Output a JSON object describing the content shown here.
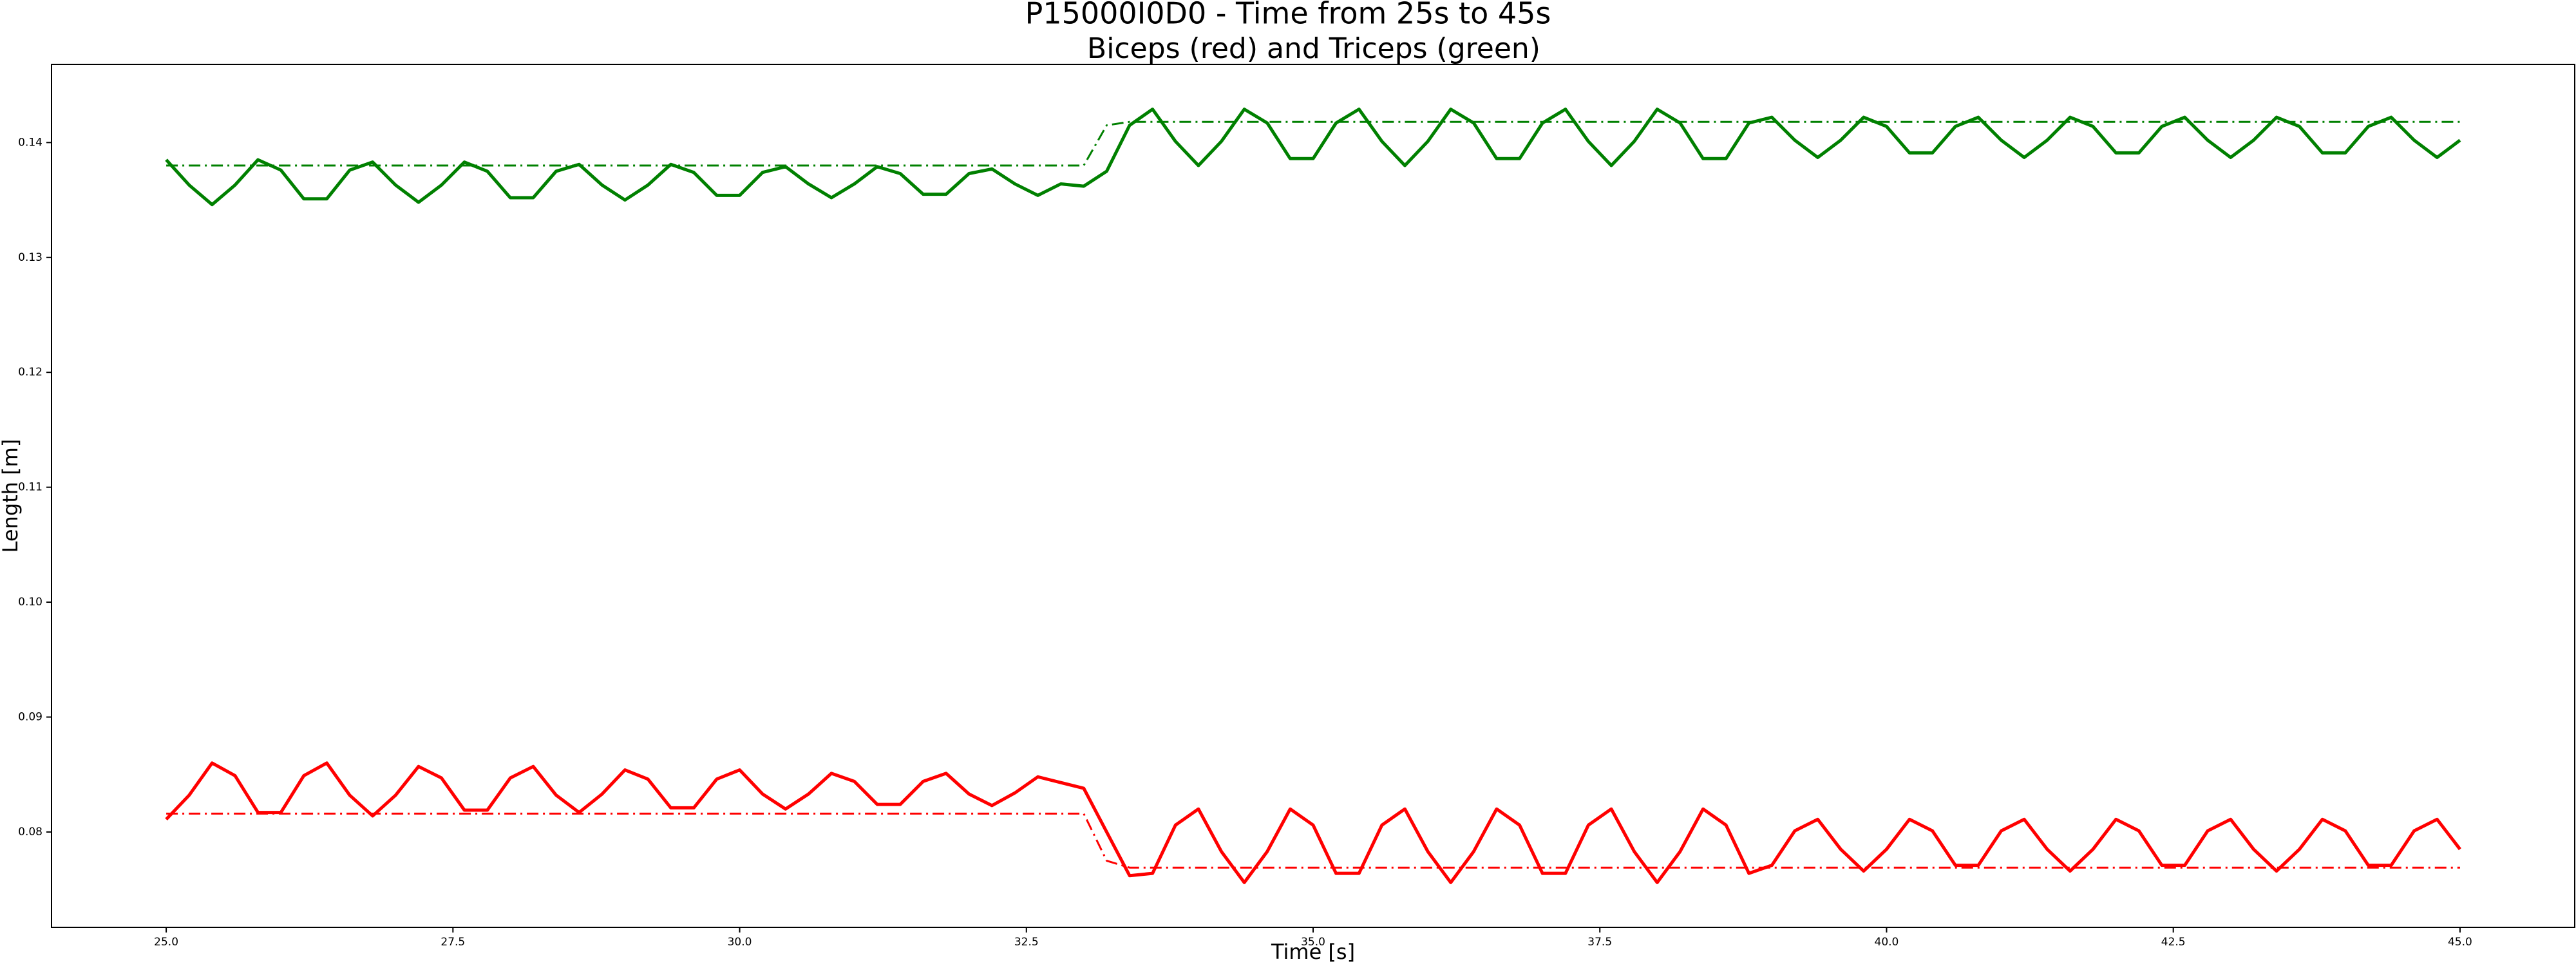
{
  "chart_data": {
    "type": "line",
    "title": "P15000I0D0 - Time from 25s to 45s",
    "subtitle": "Biceps (red) and Triceps (green)",
    "x_label": "Time [s]",
    "y_label": "Length [m]",
    "grid": false,
    "xlim": [
      24.0,
      46.0
    ],
    "ylim": [
      0.0717,
      0.1468
    ],
    "xticks": [
      {
        "value": 25,
        "label": "25.0"
      },
      27.5,
      {
        "value": 30,
        "label": "30.0"
      },
      32.5,
      {
        "value": 35,
        "label": "35.0"
      },
      37.5,
      {
        "value": 40,
        "label": "40.0"
      },
      42.5,
      {
        "value": 45,
        "label": "45.0"
      }
    ],
    "yticks": [
      0.08,
      0.09,
      {
        "value": 0.1,
        "label": "0.10"
      },
      0.11,
      0.12,
      0.13,
      0.14
    ],
    "x": [
      25,
      25.2,
      25.4,
      25.6,
      25.8,
      26,
      26.2,
      26.4,
      26.6,
      26.8,
      27,
      27.2,
      27.4,
      27.6,
      27.8,
      28,
      28.2,
      28.4,
      28.6,
      28.8,
      29,
      29.2,
      29.4,
      29.6,
      29.8,
      30,
      30.2,
      30.4,
      30.6,
      30.8,
      31,
      31.2,
      31.4,
      31.6,
      31.8,
      32,
      32.2,
      32.4,
      32.6,
      32.8,
      33,
      33.2,
      33.4,
      33.6,
      33.8,
      34,
      34.2,
      34.4,
      34.6,
      34.8,
      35,
      35.2,
      35.4,
      35.6,
      35.8,
      36,
      36.2,
      36.4,
      36.6,
      36.8,
      37,
      37.2,
      37.4,
      37.6,
      37.8,
      38,
      38.2,
      38.4,
      38.6,
      38.8,
      39,
      39.2,
      39.4,
      39.6,
      39.8,
      40,
      40.2,
      40.4,
      40.6,
      40.8,
      41,
      41.2,
      41.4,
      41.6,
      41.8,
      42,
      42.2,
      42.4,
      42.6,
      42.8,
      43,
      43.2,
      43.4,
      43.6,
      43.8,
      44,
      44.2,
      44.4,
      44.6,
      44.8,
      45
    ],
    "series": [
      {
        "color": "#008000",
        "linestyle": "solid",
        "values": [
          0.1385,
          0.1363,
          0.1346,
          0.1363,
          0.1385,
          0.1376,
          0.1351,
          0.1351,
          0.1376,
          0.1383,
          0.1363,
          0.1348,
          0.1363,
          0.1383,
          0.1375,
          0.1352,
          0.1352,
          0.1375,
          0.1381,
          0.1363,
          0.135,
          0.1363,
          0.1381,
          0.1374,
          0.1354,
          0.1354,
          0.1374,
          0.1379,
          0.1364,
          0.1352,
          0.1364,
          0.1379,
          0.1373,
          0.1355,
          0.1355,
          0.1373,
          0.1377,
          0.1364,
          0.1354,
          0.1364,
          0.1362,
          0.1375,
          0.1415,
          0.1429,
          0.1401,
          0.138,
          0.1401,
          0.1429,
          0.1417,
          0.1386,
          0.1386,
          0.1417,
          0.1429,
          0.1401,
          0.138,
          0.1401,
          0.1429,
          0.1417,
          0.1386,
          0.1386,
          0.1417,
          0.1429,
          0.1401,
          0.138,
          0.1401,
          0.1429,
          0.1417,
          0.1386,
          0.1386,
          0.1417,
          0.1422,
          0.1402,
          0.1387,
          0.1402,
          0.1422,
          0.1414,
          0.1391,
          0.1391,
          0.1414,
          0.1422,
          0.1402,
          0.1387,
          0.1402,
          0.1422,
          0.1414,
          0.1391,
          0.1391,
          0.1414,
          0.1422,
          0.1402,
          0.1387,
          0.1402,
          0.1422,
          0.1414,
          0.1391,
          0.1391,
          0.1414,
          0.1422,
          0.1402,
          0.1387,
          0.1402
        ]
      },
      {
        "color": "#008000",
        "linestyle": "dashdot",
        "values": [
          0.138,
          0.138,
          0.138,
          0.138,
          0.138,
          0.138,
          0.138,
          0.138,
          0.138,
          0.138,
          0.138,
          0.138,
          0.138,
          0.138,
          0.138,
          0.138,
          0.138,
          0.138,
          0.138,
          0.138,
          0.138,
          0.138,
          0.138,
          0.138,
          0.138,
          0.138,
          0.138,
          0.138,
          0.138,
          0.138,
          0.138,
          0.138,
          0.138,
          0.138,
          0.138,
          0.138,
          0.138,
          0.138,
          0.138,
          0.138,
          0.138,
          0.1415,
          0.1418,
          0.1418,
          0.1418,
          0.1418,
          0.1418,
          0.1418,
          0.1418,
          0.1418,
          0.1418,
          0.1418,
          0.1418,
          0.1418,
          0.1418,
          0.1418,
          0.1418,
          0.1418,
          0.1418,
          0.1418,
          0.1418,
          0.1418,
          0.1418,
          0.1418,
          0.1418,
          0.1418,
          0.1418,
          0.1418,
          0.1418,
          0.1418,
          0.1418,
          0.1418,
          0.1418,
          0.1418,
          0.1418,
          0.1418,
          0.1418,
          0.1418,
          0.1418,
          0.1418,
          0.1418,
          0.1418,
          0.1418,
          0.1418,
          0.1418,
          0.1418,
          0.1418,
          0.1418,
          0.1418,
          0.1418,
          0.1418,
          0.1418,
          0.1418,
          0.1418,
          0.1418,
          0.1418,
          0.1418,
          0.1418,
          0.1418,
          0.1418,
          0.1418
        ]
      },
      {
        "color": "#ff0000",
        "linestyle": "solid",
        "values": [
          0.0811,
          0.0832,
          0.086,
          0.0849,
          0.0817,
          0.0817,
          0.0849,
          0.086,
          0.0832,
          0.0814,
          0.0832,
          0.0857,
          0.0847,
          0.0819,
          0.0819,
          0.0847,
          0.0857,
          0.0832,
          0.0817,
          0.0833,
          0.0854,
          0.0846,
          0.0821,
          0.0821,
          0.0846,
          0.0854,
          0.0833,
          0.082,
          0.0833,
          0.0851,
          0.0844,
          0.0824,
          0.0824,
          0.0844,
          0.0851,
          0.0833,
          0.0823,
          0.0834,
          0.0848,
          0.0843,
          0.0838,
          0.08,
          0.0762,
          0.0764,
          0.0806,
          0.082,
          0.0783,
          0.0756,
          0.0783,
          0.082,
          0.0806,
          0.0764,
          0.0764,
          0.0806,
          0.082,
          0.0783,
          0.0756,
          0.0783,
          0.082,
          0.0806,
          0.0764,
          0.0764,
          0.0806,
          0.082,
          0.0783,
          0.0756,
          0.0783,
          0.082,
          0.0806,
          0.0764,
          0.0771,
          0.0801,
          0.0811,
          0.0785,
          0.0766,
          0.0785,
          0.0811,
          0.0801,
          0.0771,
          0.0771,
          0.0801,
          0.0811,
          0.0785,
          0.0766,
          0.0785,
          0.0811,
          0.0801,
          0.0771,
          0.0771,
          0.0801,
          0.0811,
          0.0785,
          0.0766,
          0.0785,
          0.0811,
          0.0801,
          0.0771,
          0.0771,
          0.0801,
          0.0811,
          0.0785
        ]
      },
      {
        "color": "#ff0000",
        "linestyle": "dashdot",
        "values": [
          0.0816,
          0.0816,
          0.0816,
          0.0816,
          0.0816,
          0.0816,
          0.0816,
          0.0816,
          0.0816,
          0.0816,
          0.0816,
          0.0816,
          0.0816,
          0.0816,
          0.0816,
          0.0816,
          0.0816,
          0.0816,
          0.0816,
          0.0816,
          0.0816,
          0.0816,
          0.0816,
          0.0816,
          0.0816,
          0.0816,
          0.0816,
          0.0816,
          0.0816,
          0.0816,
          0.0816,
          0.0816,
          0.0816,
          0.0816,
          0.0816,
          0.0816,
          0.0816,
          0.0816,
          0.0816,
          0.0816,
          0.0816,
          0.0775,
          0.0769,
          0.0769,
          0.0769,
          0.0769,
          0.0769,
          0.0769,
          0.0769,
          0.0769,
          0.0769,
          0.0769,
          0.0769,
          0.0769,
          0.0769,
          0.0769,
          0.0769,
          0.0769,
          0.0769,
          0.0769,
          0.0769,
          0.0769,
          0.0769,
          0.0769,
          0.0769,
          0.0769,
          0.0769,
          0.0769,
          0.0769,
          0.0769,
          0.0769,
          0.0769,
          0.0769,
          0.0769,
          0.0769,
          0.0769,
          0.0769,
          0.0769,
          0.0769,
          0.0769,
          0.0769,
          0.0769,
          0.0769,
          0.0769,
          0.0769,
          0.0769,
          0.0769,
          0.0769,
          0.0769,
          0.0769,
          0.0769,
          0.0769,
          0.0769,
          0.0769,
          0.0769,
          0.0769,
          0.0769,
          0.0769,
          0.0769,
          0.0769,
          0.0769
        ]
      }
    ]
  }
}
